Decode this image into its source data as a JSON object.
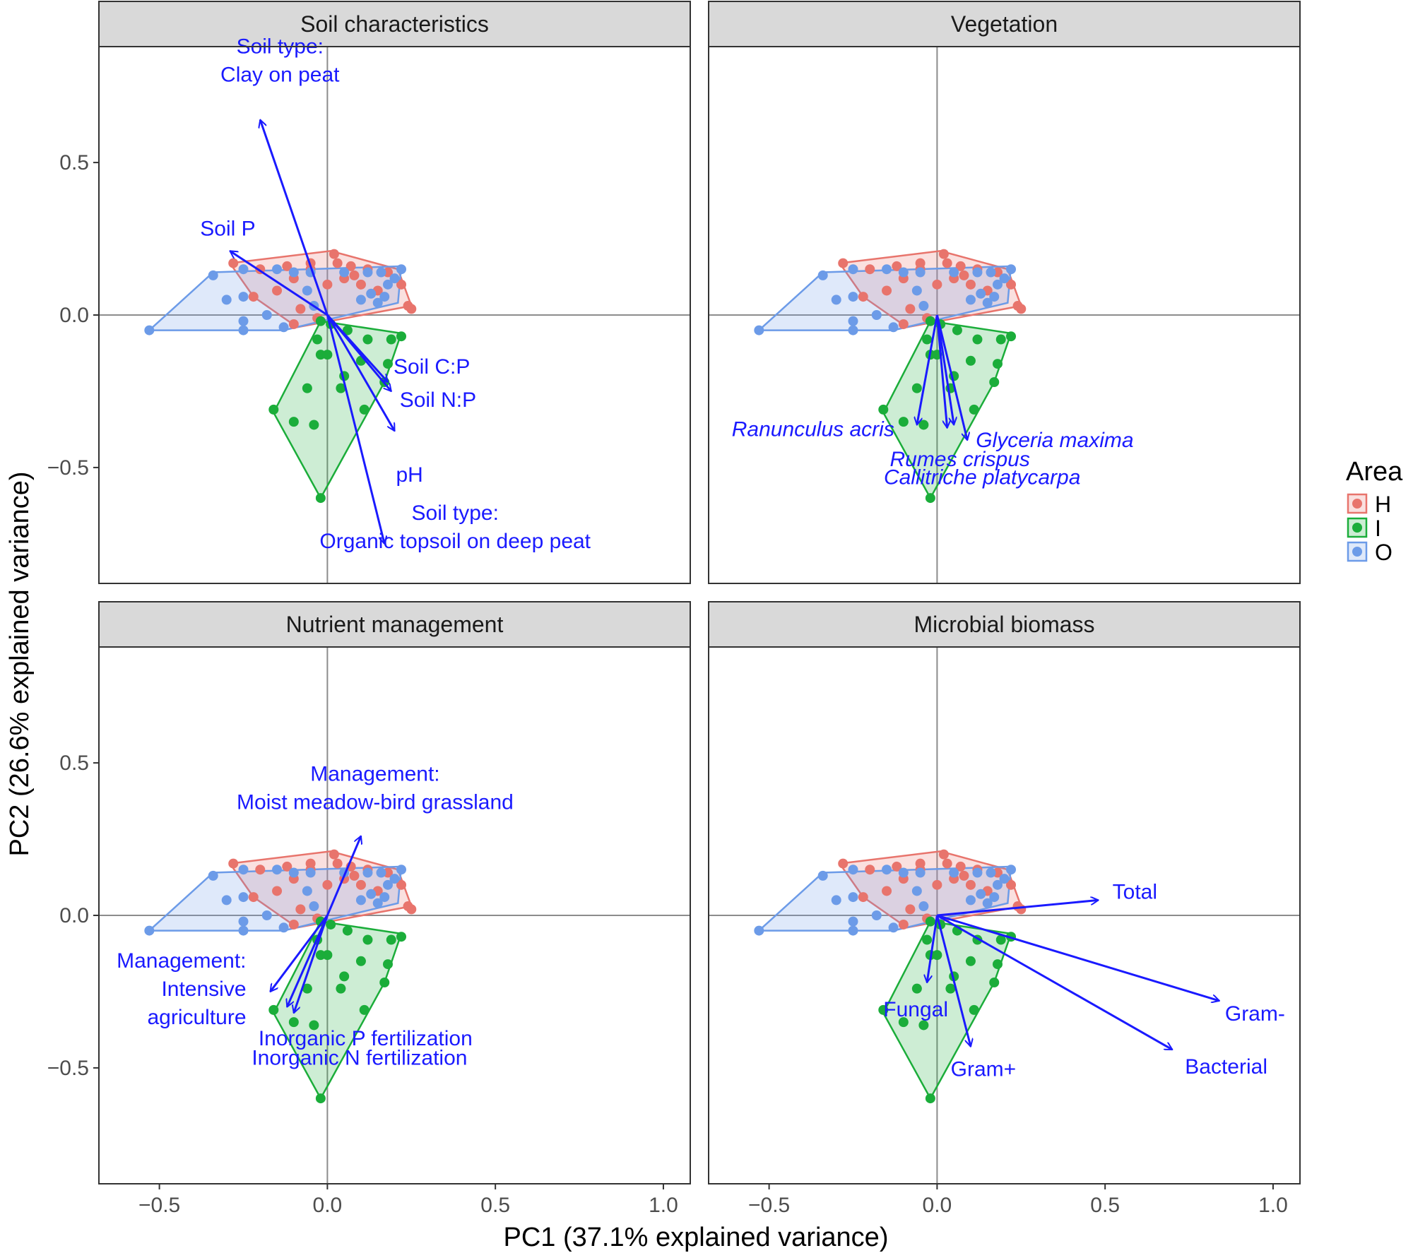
{
  "colors": {
    "H": "#e8746c",
    "I": "#1bad3a",
    "O": "#6c9be8",
    "arrow": "#1a1aff",
    "strip_bg": "#d9d9d9",
    "zero_line": "#8c8c8c"
  },
  "chart_data": {
    "type": "scatter",
    "description_of_layout": "2x2 faceted PCA biplot with shared axes",
    "xlabel": "PC1 (37.1% explained variance)",
    "ylabel": "PC2 (26.6% explained variance)",
    "xlim": [
      -0.68,
      1.08
    ],
    "ylim": [
      -0.88,
      0.88
    ],
    "x_ticks": [
      -0.5,
      0.0,
      0.5,
      1.0
    ],
    "x_tick_labels": [
      "−0.5",
      "0.0",
      "0.5",
      "1.0"
    ],
    "y_ticks": [
      0.5,
      0.0,
      -0.5
    ],
    "y_tick_labels": [
      "0.5",
      "0.0",
      "−0.5"
    ],
    "grid": false,
    "legend": {
      "title": "Area",
      "position": "right",
      "entries": [
        "H",
        "I",
        "O"
      ]
    },
    "groups": [
      {
        "name": "H",
        "points": [
          [
            -0.28,
            0.17
          ],
          [
            -0.2,
            0.15
          ],
          [
            -0.12,
            0.16
          ],
          [
            -0.05,
            0.17
          ],
          [
            0.02,
            0.2
          ],
          [
            0.07,
            0.16
          ],
          [
            0.12,
            0.15
          ],
          [
            0.18,
            0.14
          ],
          [
            0.22,
            0.1
          ],
          [
            0.24,
            0.03
          ],
          [
            0.25,
            0.02
          ],
          [
            -0.1,
            0.12
          ],
          [
            -0.15,
            0.08
          ],
          [
            -0.22,
            0.06
          ],
          [
            -0.08,
            0.02
          ],
          [
            -0.03,
            -0.01
          ],
          [
            0.05,
            0.12
          ],
          [
            0.1,
            0.1
          ],
          [
            0.15,
            0.08
          ],
          [
            -0.1,
            -0.03
          ],
          [
            0.0,
            0.1
          ],
          [
            -0.05,
            0.15
          ],
          [
            0.03,
            0.17
          ],
          [
            0.08,
            0.13
          ]
        ],
        "hull": [
          [
            -0.29,
            0.17
          ],
          [
            0.01,
            0.21
          ],
          [
            0.21,
            0.15
          ],
          [
            0.25,
            0.03
          ],
          [
            -0.09,
            -0.04
          ],
          [
            -0.22,
            0.06
          ]
        ]
      },
      {
        "name": "I",
        "points": [
          [
            -0.02,
            -0.02
          ],
          [
            0.01,
            -0.03
          ],
          [
            0.12,
            -0.08
          ],
          [
            0.19,
            -0.08
          ],
          [
            0.22,
            -0.07
          ],
          [
            0.18,
            -0.16
          ],
          [
            0.17,
            -0.22
          ],
          [
            0.11,
            -0.31
          ],
          [
            0.05,
            -0.2
          ],
          [
            -0.02,
            -0.13
          ],
          [
            0.0,
            -0.13
          ],
          [
            0.04,
            -0.24
          ],
          [
            -0.06,
            -0.24
          ],
          [
            -0.16,
            -0.31
          ],
          [
            -0.1,
            -0.35
          ],
          [
            -0.04,
            -0.36
          ],
          [
            -0.02,
            -0.6
          ],
          [
            -0.03,
            -0.08
          ],
          [
            0.06,
            -0.05
          ],
          [
            0.1,
            -0.15
          ]
        ],
        "hull": [
          [
            -0.02,
            -0.02
          ],
          [
            0.22,
            -0.06
          ],
          [
            0.17,
            -0.22
          ],
          [
            -0.02,
            -0.6
          ],
          [
            -0.16,
            -0.32
          ]
        ]
      },
      {
        "name": "O",
        "points": [
          [
            -0.53,
            -0.05
          ],
          [
            -0.34,
            0.13
          ],
          [
            -0.25,
            0.15
          ],
          [
            -0.15,
            0.15
          ],
          [
            -0.1,
            0.14
          ],
          [
            -0.05,
            0.14
          ],
          [
            0.05,
            0.14
          ],
          [
            0.12,
            0.14
          ],
          [
            0.16,
            0.14
          ],
          [
            0.22,
            0.15
          ],
          [
            0.2,
            0.12
          ],
          [
            0.18,
            0.1
          ],
          [
            0.13,
            0.07
          ],
          [
            -0.3,
            0.05
          ],
          [
            -0.25,
            0.06
          ],
          [
            -0.25,
            -0.02
          ],
          [
            -0.25,
            -0.05
          ],
          [
            -0.13,
            -0.04
          ],
          [
            -0.04,
            0.03
          ],
          [
            0.15,
            0.04
          ],
          [
            -0.18,
            0.0
          ],
          [
            0.1,
            0.05
          ],
          [
            -0.06,
            0.08
          ],
          [
            0.17,
            0.06
          ]
        ],
        "hull": [
          [
            -0.53,
            -0.05
          ],
          [
            -0.34,
            0.14
          ],
          [
            0.22,
            0.16
          ],
          [
            0.21,
            0.04
          ],
          [
            -0.13,
            -0.05
          ]
        ]
      }
    ],
    "facets": [
      {
        "name": "Soil characteristics",
        "italic": false,
        "arrows": [
          {
            "x": -0.2,
            "y": 0.64,
            "label": [
              "Soil type:",
              "Clay on peat"
            ]
          },
          {
            "x": -0.29,
            "y": 0.21,
            "label": [
              "Soil P"
            ]
          },
          {
            "x": 0.18,
            "y": -0.22,
            "label": [
              "Soil C:P"
            ]
          },
          {
            "x": 0.19,
            "y": -0.25,
            "label": [
              "Soil N:P"
            ]
          },
          {
            "x": 0.2,
            "y": -0.38,
            "label": [
              "pH"
            ]
          },
          {
            "x": 0.17,
            "y": -0.75,
            "label": [
              "Soil type:",
              "Organic topsoil on deep peat"
            ]
          }
        ]
      },
      {
        "name": "Vegetation",
        "italic": true,
        "arrows": [
          {
            "x": -0.06,
            "y": -0.36,
            "label": [
              "Ranunculus acris"
            ]
          },
          {
            "x": 0.03,
            "y": -0.37,
            "label": [
              "Rumes crispus"
            ]
          },
          {
            "x": 0.05,
            "y": -0.36,
            "label": [
              "Callitriche platycarpa"
            ]
          },
          {
            "x": 0.09,
            "y": -0.41,
            "label": [
              "Glyceria maxima"
            ]
          }
        ]
      },
      {
        "name": "Nutrient management",
        "italic": false,
        "arrows": [
          {
            "x": 0.1,
            "y": 0.26,
            "label": [
              "Management:",
              "Moist meadow-bird grassland"
            ]
          },
          {
            "x": -0.17,
            "y": -0.25,
            "label": [
              "Management:",
              "Intensive",
              "agriculture"
            ]
          },
          {
            "x": -0.1,
            "y": -0.32,
            "label": [
              "Inorganic P fertilization"
            ]
          },
          {
            "x": -0.12,
            "y": -0.3,
            "label": [
              "Inorganic N fertilization"
            ]
          }
        ]
      },
      {
        "name": "Microbial biomass",
        "italic": false,
        "arrows": [
          {
            "x": 0.48,
            "y": 0.05,
            "label": [
              "Total"
            ]
          },
          {
            "x": -0.03,
            "y": -0.22,
            "label": [
              "Fungal"
            ]
          },
          {
            "x": 0.1,
            "y": -0.43,
            "label": [
              "Gram+"
            ]
          },
          {
            "x": 0.84,
            "y": -0.28,
            "label": [
              "Gram-"
            ]
          },
          {
            "x": 0.7,
            "y": -0.44,
            "label": [
              "Bacterial"
            ]
          }
        ]
      }
    ]
  }
}
